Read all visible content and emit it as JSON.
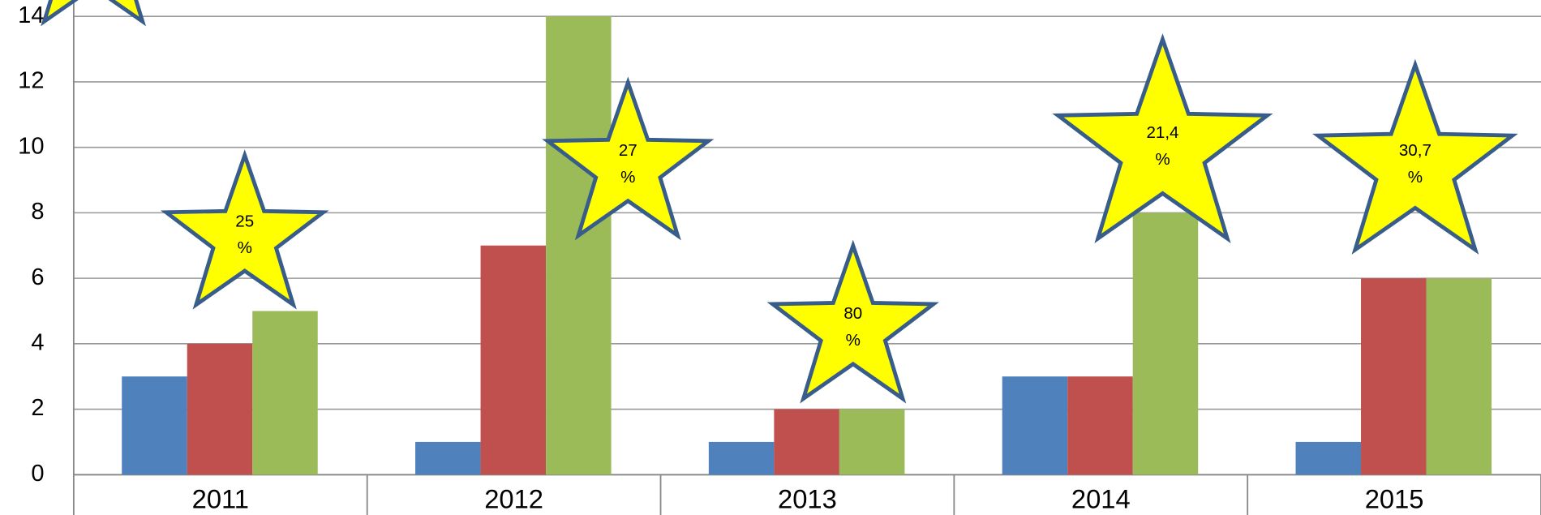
{
  "chart_data": {
    "type": "bar",
    "categories": [
      "2011",
      "2012",
      "2013",
      "2014",
      "2015"
    ],
    "series": [
      {
        "color": "#4f81bd",
        "values": [
          3,
          1,
          1,
          3,
          1
        ]
      },
      {
        "color": "#c0504d",
        "values": [
          4,
          7,
          2,
          3,
          6
        ]
      },
      {
        "color": "#9bbb59",
        "values": [
          5,
          14,
          2,
          8,
          6
        ]
      }
    ],
    "ylim": [
      0,
      14.5
    ],
    "yticks": [
      0,
      2,
      4,
      6,
      8,
      10,
      12,
      14
    ],
    "grid": true,
    "annotations": [
      {
        "text": [
          "25",
          "%"
        ]
      },
      {
        "text": [
          "27",
          "%"
        ]
      },
      {
        "text": [
          "80",
          "%"
        ]
      },
      {
        "text": [
          "21,4",
          "%"
        ]
      },
      {
        "text": [
          "30,7",
          "%"
        ]
      }
    ]
  }
}
